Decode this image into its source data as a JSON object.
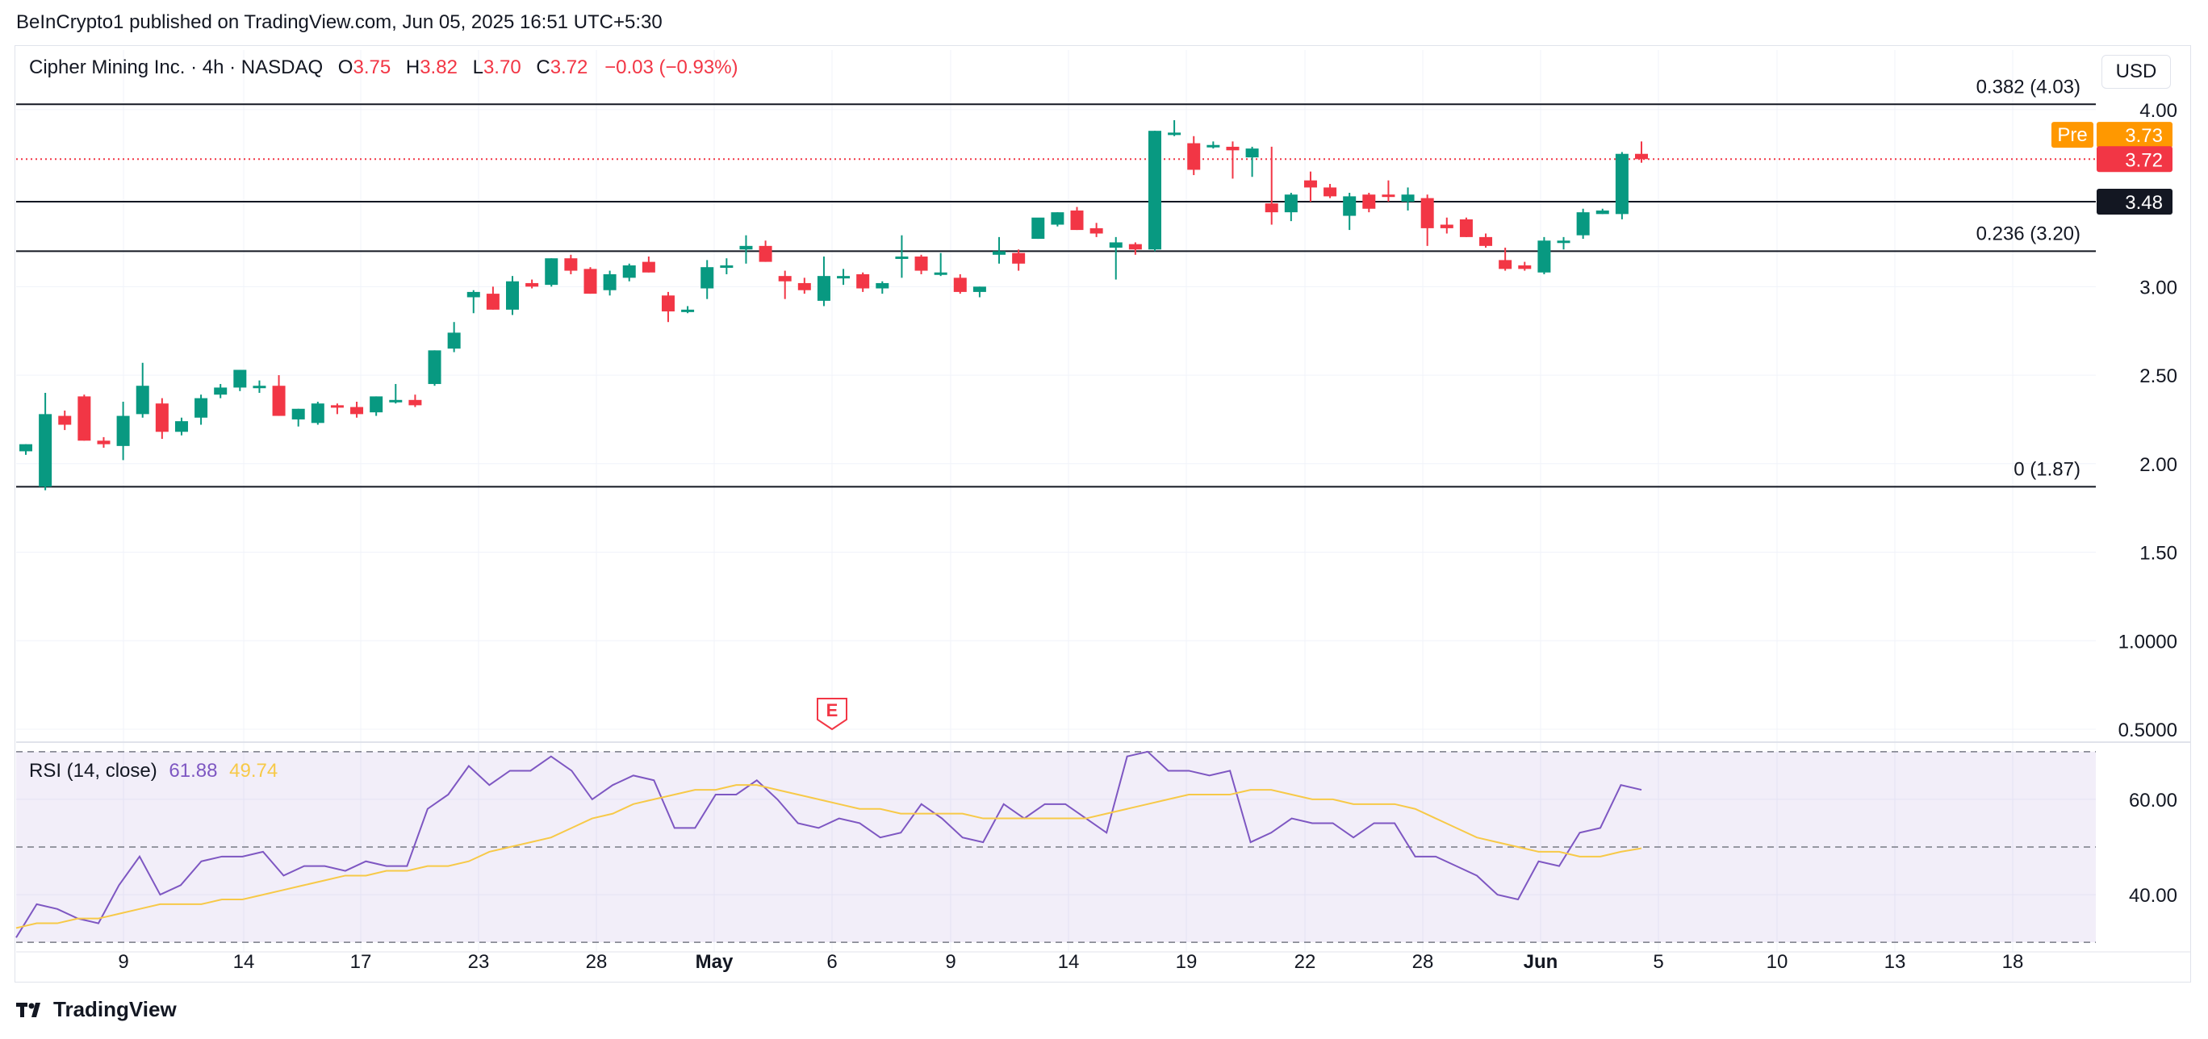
{
  "publisher_line": "BeInCrypto1 published on TradingView.com, Jun 05, 2025 16:51 UTC+5:30",
  "legend": {
    "symbol": "Cipher Mining Inc. · 4h · NASDAQ",
    "o_label": "O",
    "o_value": "3.75",
    "h_label": "H",
    "h_value": "3.82",
    "l_label": "L",
    "l_value": "3.70",
    "c_label": "C",
    "c_value": "3.72",
    "change": "−0.03 (−0.93%)"
  },
  "currency": "USD",
  "brand": "TradingView",
  "colors": {
    "up": "#089981",
    "down": "#f23645",
    "rsi": "#7e57c2",
    "rsi_ma": "#f7c948",
    "pre": "#ff9800"
  },
  "chart_data": {
    "type": "candlestick",
    "title": "Cipher Mining Inc. · 4h · NASDAQ",
    "ylim": [
      0.45,
      4.3
    ],
    "y_ticks": [
      "4.00",
      "3.00",
      "2.50",
      "2.00",
      "1.50",
      "1.0000",
      "0.5000"
    ],
    "y_tick_values": [
      4.0,
      3.0,
      2.5,
      2.0,
      1.5,
      1.0,
      0.5
    ],
    "x_ticks": [
      "9",
      "14",
      "17",
      "23",
      "28",
      "May",
      "6",
      "9",
      "14",
      "19",
      "22",
      "28",
      "Jun",
      "5",
      "10",
      "13",
      "18"
    ],
    "candles": [
      [
        2.07,
        2.11,
        2.05,
        2.11
      ],
      [
        1.87,
        2.4,
        1.85,
        2.28
      ],
      [
        2.27,
        2.3,
        2.19,
        2.22
      ],
      [
        2.38,
        2.39,
        2.13,
        2.13
      ],
      [
        2.13,
        2.15,
        2.09,
        2.11
      ],
      [
        2.1,
        2.35,
        2.02,
        2.27
      ],
      [
        2.28,
        2.57,
        2.26,
        2.44
      ],
      [
        2.34,
        2.37,
        2.14,
        2.18
      ],
      [
        2.18,
        2.26,
        2.16,
        2.24
      ],
      [
        2.26,
        2.39,
        2.22,
        2.37
      ],
      [
        2.39,
        2.45,
        2.37,
        2.43
      ],
      [
        2.43,
        2.53,
        2.41,
        2.53
      ],
      [
        2.43,
        2.47,
        2.4,
        2.44
      ],
      [
        2.44,
        2.5,
        2.27,
        2.27
      ],
      [
        2.25,
        2.31,
        2.21,
        2.31
      ],
      [
        2.23,
        2.35,
        2.22,
        2.34
      ],
      [
        2.33,
        2.34,
        2.28,
        2.32
      ],
      [
        2.32,
        2.35,
        2.26,
        2.28
      ],
      [
        2.29,
        2.38,
        2.27,
        2.38
      ],
      [
        2.36,
        2.45,
        2.34,
        2.36
      ],
      [
        2.36,
        2.39,
        2.32,
        2.33
      ],
      [
        2.45,
        2.64,
        2.44,
        2.64
      ],
      [
        2.65,
        2.8,
        2.63,
        2.74
      ],
      [
        2.94,
        2.98,
        2.85,
        2.97
      ],
      [
        2.96,
        3.0,
        2.87,
        2.87
      ],
      [
        2.87,
        3.06,
        2.84,
        3.03
      ],
      [
        3.02,
        3.04,
        2.99,
        3.0
      ],
      [
        3.01,
        3.16,
        3.0,
        3.16
      ],
      [
        3.16,
        3.18,
        3.07,
        3.09
      ],
      [
        3.1,
        3.11,
        2.96,
        2.96
      ],
      [
        2.98,
        3.09,
        2.95,
        3.07
      ],
      [
        3.05,
        3.13,
        3.03,
        3.12
      ],
      [
        3.14,
        3.17,
        3.08,
        3.08
      ],
      [
        2.95,
        2.97,
        2.8,
        2.86
      ],
      [
        2.87,
        2.89,
        2.85,
        2.87
      ],
      [
        2.99,
        3.15,
        2.93,
        3.11
      ],
      [
        3.12,
        3.16,
        3.07,
        3.12
      ],
      [
        3.21,
        3.29,
        3.13,
        3.23
      ],
      [
        3.23,
        3.26,
        3.14,
        3.14
      ],
      [
        3.06,
        3.09,
        2.93,
        3.03
      ],
      [
        3.02,
        3.05,
        2.96,
        2.98
      ],
      [
        2.92,
        3.17,
        2.89,
        3.06
      ],
      [
        3.06,
        3.1,
        3.01,
        3.06
      ],
      [
        3.07,
        3.08,
        2.97,
        2.99
      ],
      [
        2.99,
        3.03,
        2.96,
        3.02
      ],
      [
        3.17,
        3.29,
        3.05,
        3.17
      ],
      [
        3.17,
        3.18,
        3.07,
        3.09
      ],
      [
        3.08,
        3.19,
        3.06,
        3.08
      ],
      [
        3.05,
        3.07,
        2.96,
        2.97
      ],
      [
        2.97,
        3.0,
        2.94,
        3.0
      ],
      [
        3.18,
        3.28,
        3.13,
        3.2
      ],
      [
        3.19,
        3.21,
        3.09,
        3.13
      ],
      [
        3.27,
        3.37,
        3.27,
        3.39
      ],
      [
        3.35,
        3.42,
        3.34,
        3.42
      ],
      [
        3.43,
        3.45,
        3.32,
        3.32
      ],
      [
        3.33,
        3.36,
        3.28,
        3.3
      ],
      [
        3.22,
        3.28,
        3.04,
        3.25
      ],
      [
        3.24,
        3.25,
        3.18,
        3.21
      ],
      [
        3.21,
        3.88,
        3.2,
        3.88
      ],
      [
        3.86,
        3.94,
        3.85,
        3.87
      ],
      [
        3.81,
        3.85,
        3.63,
        3.66
      ],
      [
        3.79,
        3.82,
        3.78,
        3.8
      ],
      [
        3.79,
        3.82,
        3.61,
        3.77
      ],
      [
        3.73,
        3.79,
        3.62,
        3.78
      ],
      [
        3.47,
        3.79,
        3.35,
        3.42
      ],
      [
        3.42,
        3.53,
        3.37,
        3.52
      ],
      [
        3.6,
        3.65,
        3.48,
        3.56
      ],
      [
        3.56,
        3.58,
        3.5,
        3.51
      ],
      [
        3.4,
        3.53,
        3.32,
        3.51
      ],
      [
        3.52,
        3.53,
        3.42,
        3.44
      ],
      [
        3.52,
        3.6,
        3.48,
        3.51
      ],
      [
        3.48,
        3.56,
        3.43,
        3.52
      ],
      [
        3.5,
        3.52,
        3.23,
        3.33
      ],
      [
        3.35,
        3.39,
        3.3,
        3.33
      ],
      [
        3.38,
        3.39,
        3.28,
        3.28
      ],
      [
        3.28,
        3.3,
        3.22,
        3.23
      ],
      [
        3.15,
        3.22,
        3.09,
        3.1
      ],
      [
        3.12,
        3.14,
        3.09,
        3.1
      ],
      [
        3.08,
        3.28,
        3.07,
        3.26
      ],
      [
        3.26,
        3.28,
        3.21,
        3.26
      ],
      [
        3.29,
        3.44,
        3.27,
        3.42
      ],
      [
        3.41,
        3.44,
        3.41,
        3.43
      ],
      [
        3.41,
        3.76,
        3.38,
        3.75
      ],
      [
        3.75,
        3.82,
        3.7,
        3.72
      ]
    ],
    "levels": [
      {
        "label": "0.382 (4.03)",
        "value": 4.03
      },
      {
        "label": "0.236 (3.20)",
        "value": 3.2
      },
      {
        "label": "0 (1.87)",
        "value": 1.87
      },
      {
        "label": "3.48",
        "value": 3.48
      }
    ],
    "last_price": {
      "label": "3.72",
      "value": 3.72
    },
    "pre_market": {
      "tag": "Pre",
      "label": "3.73",
      "value": 3.73
    },
    "earnings_marker": "E",
    "rsi": {
      "title": "RSI (14, close)",
      "value_label": "61.88",
      "ma_label": "49.74",
      "ylim": [
        28,
        72
      ],
      "y_ticks": [
        "60.00",
        "40.00"
      ],
      "y_tick_values": [
        60,
        40
      ],
      "bands": [
        70,
        50,
        30
      ],
      "values": [
        31,
        38,
        37,
        35,
        34,
        42,
        48,
        40,
        42,
        47,
        48,
        48,
        49,
        44,
        46,
        46,
        45,
        47,
        46,
        46,
        58,
        61,
        67,
        63,
        66,
        66,
        69,
        66,
        60,
        63,
        65,
        64,
        54,
        54,
        61,
        61,
        64,
        60,
        55,
        54,
        56,
        55,
        52,
        53,
        59,
        56,
        52,
        51,
        59,
        56,
        59,
        59,
        56,
        53,
        69,
        70,
        66,
        66,
        65,
        66,
        51,
        53,
        56,
        55,
        55,
        52,
        55,
        55,
        48,
        48,
        46,
        44,
        40,
        39,
        47,
        46,
        53,
        54,
        63,
        62
      ],
      "ma_values": [
        33,
        34,
        34,
        35,
        35,
        36,
        37,
        38,
        38,
        38,
        39,
        39,
        40,
        41,
        42,
        43,
        44,
        44,
        45,
        45,
        46,
        46,
        47,
        49,
        50,
        51,
        52,
        54,
        56,
        57,
        59,
        60,
        61,
        62,
        62,
        63,
        63,
        62,
        61,
        60,
        59,
        58,
        58,
        57,
        57,
        57,
        57,
        56,
        56,
        56,
        56,
        56,
        56,
        57,
        58,
        59,
        60,
        61,
        61,
        61,
        62,
        62,
        61,
        60,
        60,
        59,
        59,
        59,
        58,
        56,
        54,
        52,
        51,
        50,
        49,
        49,
        48,
        48,
        49,
        49.74
      ]
    }
  }
}
